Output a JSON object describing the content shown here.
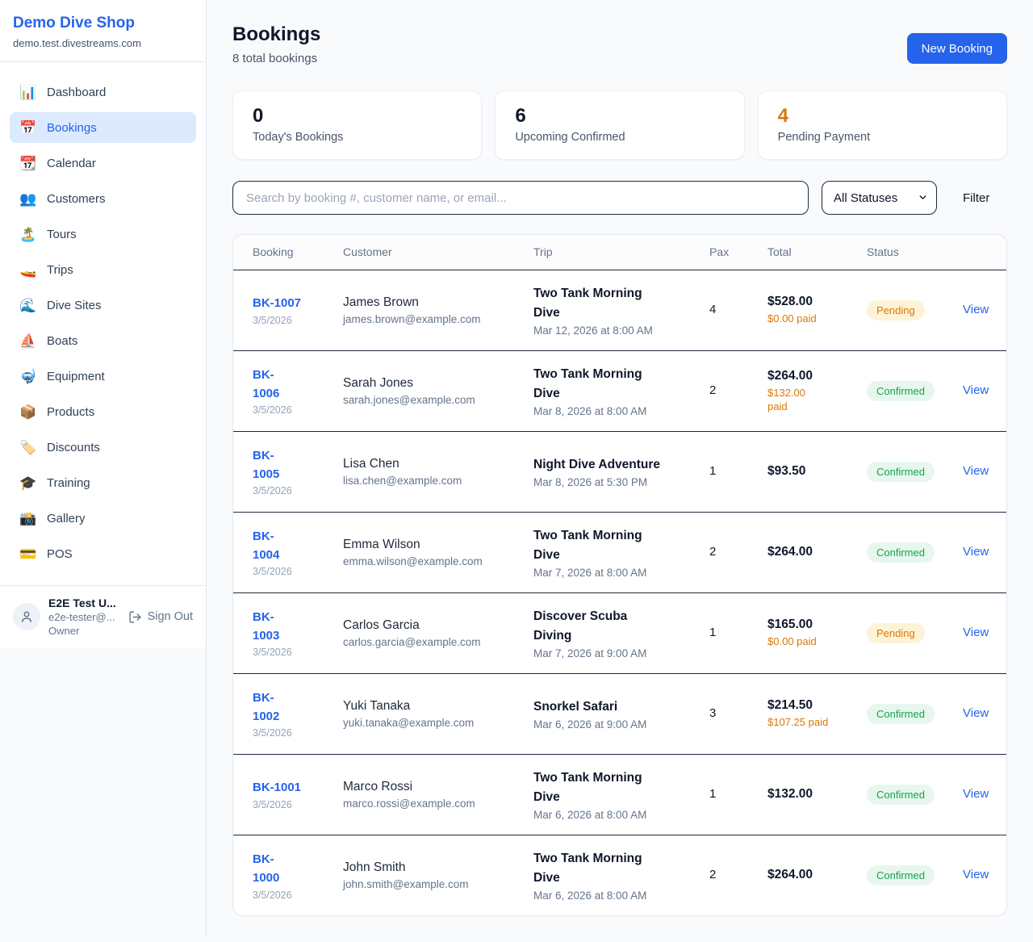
{
  "sidebar": {
    "brand": {
      "name": "Demo Dive Shop",
      "domain": "demo.test.divestreams.com"
    },
    "nav": [
      {
        "label": "Dashboard",
        "icon": "📊",
        "icon_name": "bar-chart-icon",
        "active": false
      },
      {
        "label": "Bookings",
        "icon": "📅",
        "icon_name": "calendar-date-icon",
        "active": true
      },
      {
        "label": "Calendar",
        "icon": "📆",
        "icon_name": "tear-off-calendar-icon",
        "active": false
      },
      {
        "label": "Customers",
        "icon": "👥",
        "icon_name": "people-icon",
        "active": false
      },
      {
        "label": "Tours",
        "icon": "🏝️",
        "icon_name": "island-icon",
        "active": false
      },
      {
        "label": "Trips",
        "icon": "🚤",
        "icon_name": "speedboat-icon",
        "active": false
      },
      {
        "label": "Dive Sites",
        "icon": "🌊",
        "icon_name": "wave-icon",
        "active": false
      },
      {
        "label": "Boats",
        "icon": "⛵",
        "icon_name": "sailboat-icon",
        "active": false
      },
      {
        "label": "Equipment",
        "icon": "🤿",
        "icon_name": "diving-mask-icon",
        "active": false
      },
      {
        "label": "Products",
        "icon": "📦",
        "icon_name": "package-icon",
        "active": false
      },
      {
        "label": "Discounts",
        "icon": "🏷️",
        "icon_name": "label-tag-icon",
        "active": false
      },
      {
        "label": "Training",
        "icon": "🎓",
        "icon_name": "graduation-cap-icon",
        "active": false
      },
      {
        "label": "Gallery",
        "icon": "📸",
        "icon_name": "camera-flash-icon",
        "active": false
      },
      {
        "label": "POS",
        "icon": "💳",
        "icon_name": "credit-card-icon",
        "active": false
      }
    ],
    "user": {
      "name": "E2E Test U...",
      "email": "e2e-tester@...",
      "role": "Owner",
      "sign_out": "Sign Out"
    }
  },
  "header": {
    "title": "Bookings",
    "subtitle": "8 total bookings",
    "new_booking": "New Booking"
  },
  "stats": [
    {
      "value": "0",
      "label": "Today's Bookings",
      "value_color": "#0f172a"
    },
    {
      "value": "6",
      "label": "Upcoming Confirmed",
      "value_color": "#0f172a"
    },
    {
      "value": "4",
      "label": "Pending Payment",
      "value_color": "#d97706"
    }
  ],
  "filters": {
    "search_placeholder": "Search by booking #, customer name, or email...",
    "status_select": "All Statuses",
    "filter_button": "Filter"
  },
  "table": {
    "columns": [
      "Booking",
      "Customer",
      "Trip",
      "Pax",
      "Total",
      "Status"
    ],
    "rows": [
      {
        "id_lines": [
          "BK-1007"
        ],
        "date": "3/5/2026",
        "customer": "James Brown",
        "email": "james.brown@example.com",
        "trip_lines": [
          "Two Tank Morning",
          "Dive"
        ],
        "trip_time": "Mar 12, 2026 at 8:00 AM",
        "pax": "4",
        "total": "$528.00",
        "paid_lines": [
          "$0.00 paid"
        ],
        "status": "Pending",
        "view": "View"
      },
      {
        "id_lines": [
          "BK-",
          "1006"
        ],
        "date": "3/5/2026",
        "customer": "Sarah Jones",
        "email": "sarah.jones@example.com",
        "trip_lines": [
          "Two Tank Morning",
          "Dive"
        ],
        "trip_time": "Mar 8, 2026 at 8:00 AM",
        "pax": "2",
        "total": "$264.00",
        "paid_lines": [
          "$132.00",
          "paid"
        ],
        "status": "Confirmed",
        "view": "View"
      },
      {
        "id_lines": [
          "BK-",
          "1005"
        ],
        "date": "3/5/2026",
        "customer": "Lisa Chen",
        "email": "lisa.chen@example.com",
        "trip_lines": [
          "Night Dive Adventure"
        ],
        "trip_time": "Mar 8, 2026 at 5:30 PM",
        "pax": "1",
        "total": "$93.50",
        "paid_lines": null,
        "status": "Confirmed",
        "view": "View"
      },
      {
        "id_lines": [
          "BK-",
          "1004"
        ],
        "date": "3/5/2026",
        "customer": "Emma Wilson",
        "email": "emma.wilson@example.com",
        "trip_lines": [
          "Two Tank Morning",
          "Dive"
        ],
        "trip_time": "Mar 7, 2026 at 8:00 AM",
        "pax": "2",
        "total": "$264.00",
        "paid_lines": null,
        "status": "Confirmed",
        "view": "View"
      },
      {
        "id_lines": [
          "BK-",
          "1003"
        ],
        "date": "3/5/2026",
        "customer": "Carlos Garcia",
        "email": "carlos.garcia@example.com",
        "trip_lines": [
          "Discover Scuba",
          "Diving"
        ],
        "trip_time": "Mar 7, 2026 at 9:00 AM",
        "pax": "1",
        "total": "$165.00",
        "paid_lines": [
          "$0.00 paid"
        ],
        "status": "Pending",
        "view": "View"
      },
      {
        "id_lines": [
          "BK-",
          "1002"
        ],
        "date": "3/5/2026",
        "customer": "Yuki Tanaka",
        "email": "yuki.tanaka@example.com",
        "trip_lines": [
          "Snorkel Safari"
        ],
        "trip_time": "Mar 6, 2026 at 9:00 AM",
        "pax": "3",
        "total": "$214.50",
        "paid_lines": [
          "$107.25 paid"
        ],
        "status": "Confirmed",
        "view": "View"
      },
      {
        "id_lines": [
          "BK-1001"
        ],
        "date": "3/5/2026",
        "customer": "Marco Rossi",
        "email": "marco.rossi@example.com",
        "trip_lines": [
          "Two Tank Morning",
          "Dive"
        ],
        "trip_time": "Mar 6, 2026 at 8:00 AM",
        "pax": "1",
        "total": "$132.00",
        "paid_lines": null,
        "status": "Confirmed",
        "view": "View"
      },
      {
        "id_lines": [
          "BK-",
          "1000"
        ],
        "date": "3/5/2026",
        "customer": "John Smith",
        "email": "john.smith@example.com",
        "trip_lines": [
          "Two Tank Morning",
          "Dive"
        ],
        "trip_time": "Mar 6, 2026 at 8:00 AM",
        "pax": "2",
        "total": "$264.00",
        "paid_lines": null,
        "status": "Confirmed",
        "view": "View"
      }
    ]
  },
  "colors": {
    "brand_blue": "#2563eb",
    "link_blue": "#2563eb",
    "pending_amber": "#d97706",
    "pending_badge_bg": "#fdf3d7",
    "confirmed_green": "#16a34a",
    "confirmed_badge_bg": "#e7f7ed",
    "active_nav_bg": "#dbeafe",
    "page_bg": "#f8fafc",
    "row_border": "#1e293b"
  }
}
